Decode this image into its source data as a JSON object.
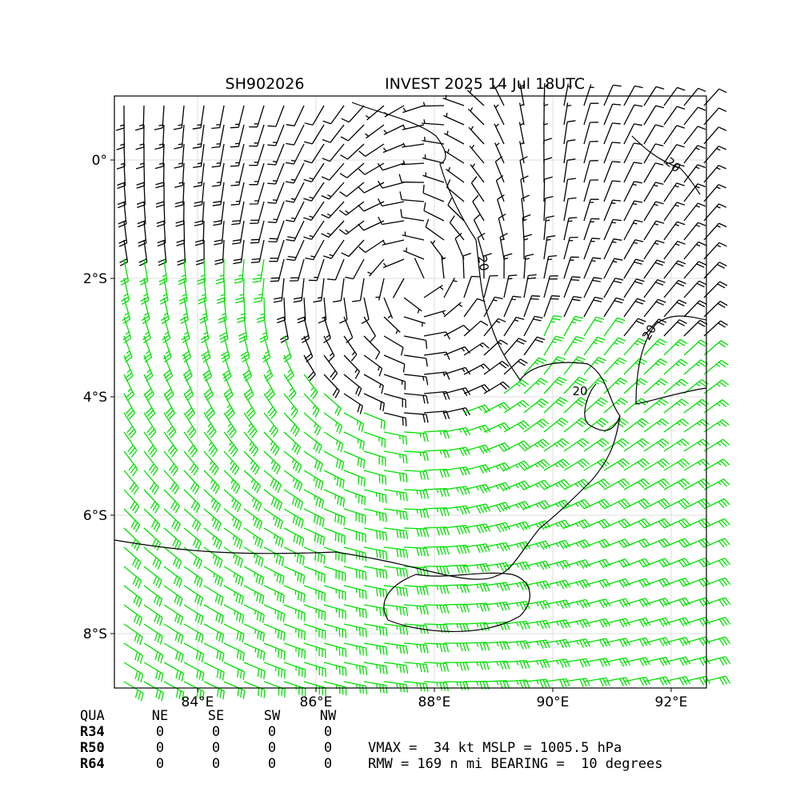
{
  "map": {
    "title_left": "SH902026",
    "title_right": "INVEST 2025 14 Jul 18UTC",
    "xlim": [
      82.595,
      92.595
    ],
    "ylim": [
      -8.919,
      1.081
    ],
    "xticks": [
      {
        "value": 84,
        "label": "84°E"
      },
      {
        "value": 86,
        "label": "86°E"
      },
      {
        "value": 88,
        "label": "88°E"
      },
      {
        "value": 90,
        "label": "90°E"
      },
      {
        "value": 92,
        "label": "92°E"
      }
    ],
    "yticks": [
      {
        "value": 0,
        "label": "0°"
      },
      {
        "value": -2,
        "label": "2°S"
      },
      {
        "value": -4,
        "label": "4°S"
      },
      {
        "value": -6,
        "label": "6°S"
      },
      {
        "value": -8,
        "label": "8°S"
      }
    ],
    "grid": true,
    "contour_labels": [
      "20",
      "20",
      "20",
      "20"
    ]
  },
  "table": {
    "header": [
      "QUA",
      "NE",
      "SE",
      "SW",
      "NW"
    ],
    "rows": [
      [
        "R34",
        0,
        0,
        0,
        0
      ],
      [
        "R50",
        0,
        0,
        0,
        0
      ],
      [
        "R64",
        0,
        0,
        0,
        0
      ]
    ]
  },
  "info": [
    "VMAX =  34 kt MSLP = 1005.5 hPa",
    "RMW = 169 n mi BEARING =  10 degrees"
  ]
}
